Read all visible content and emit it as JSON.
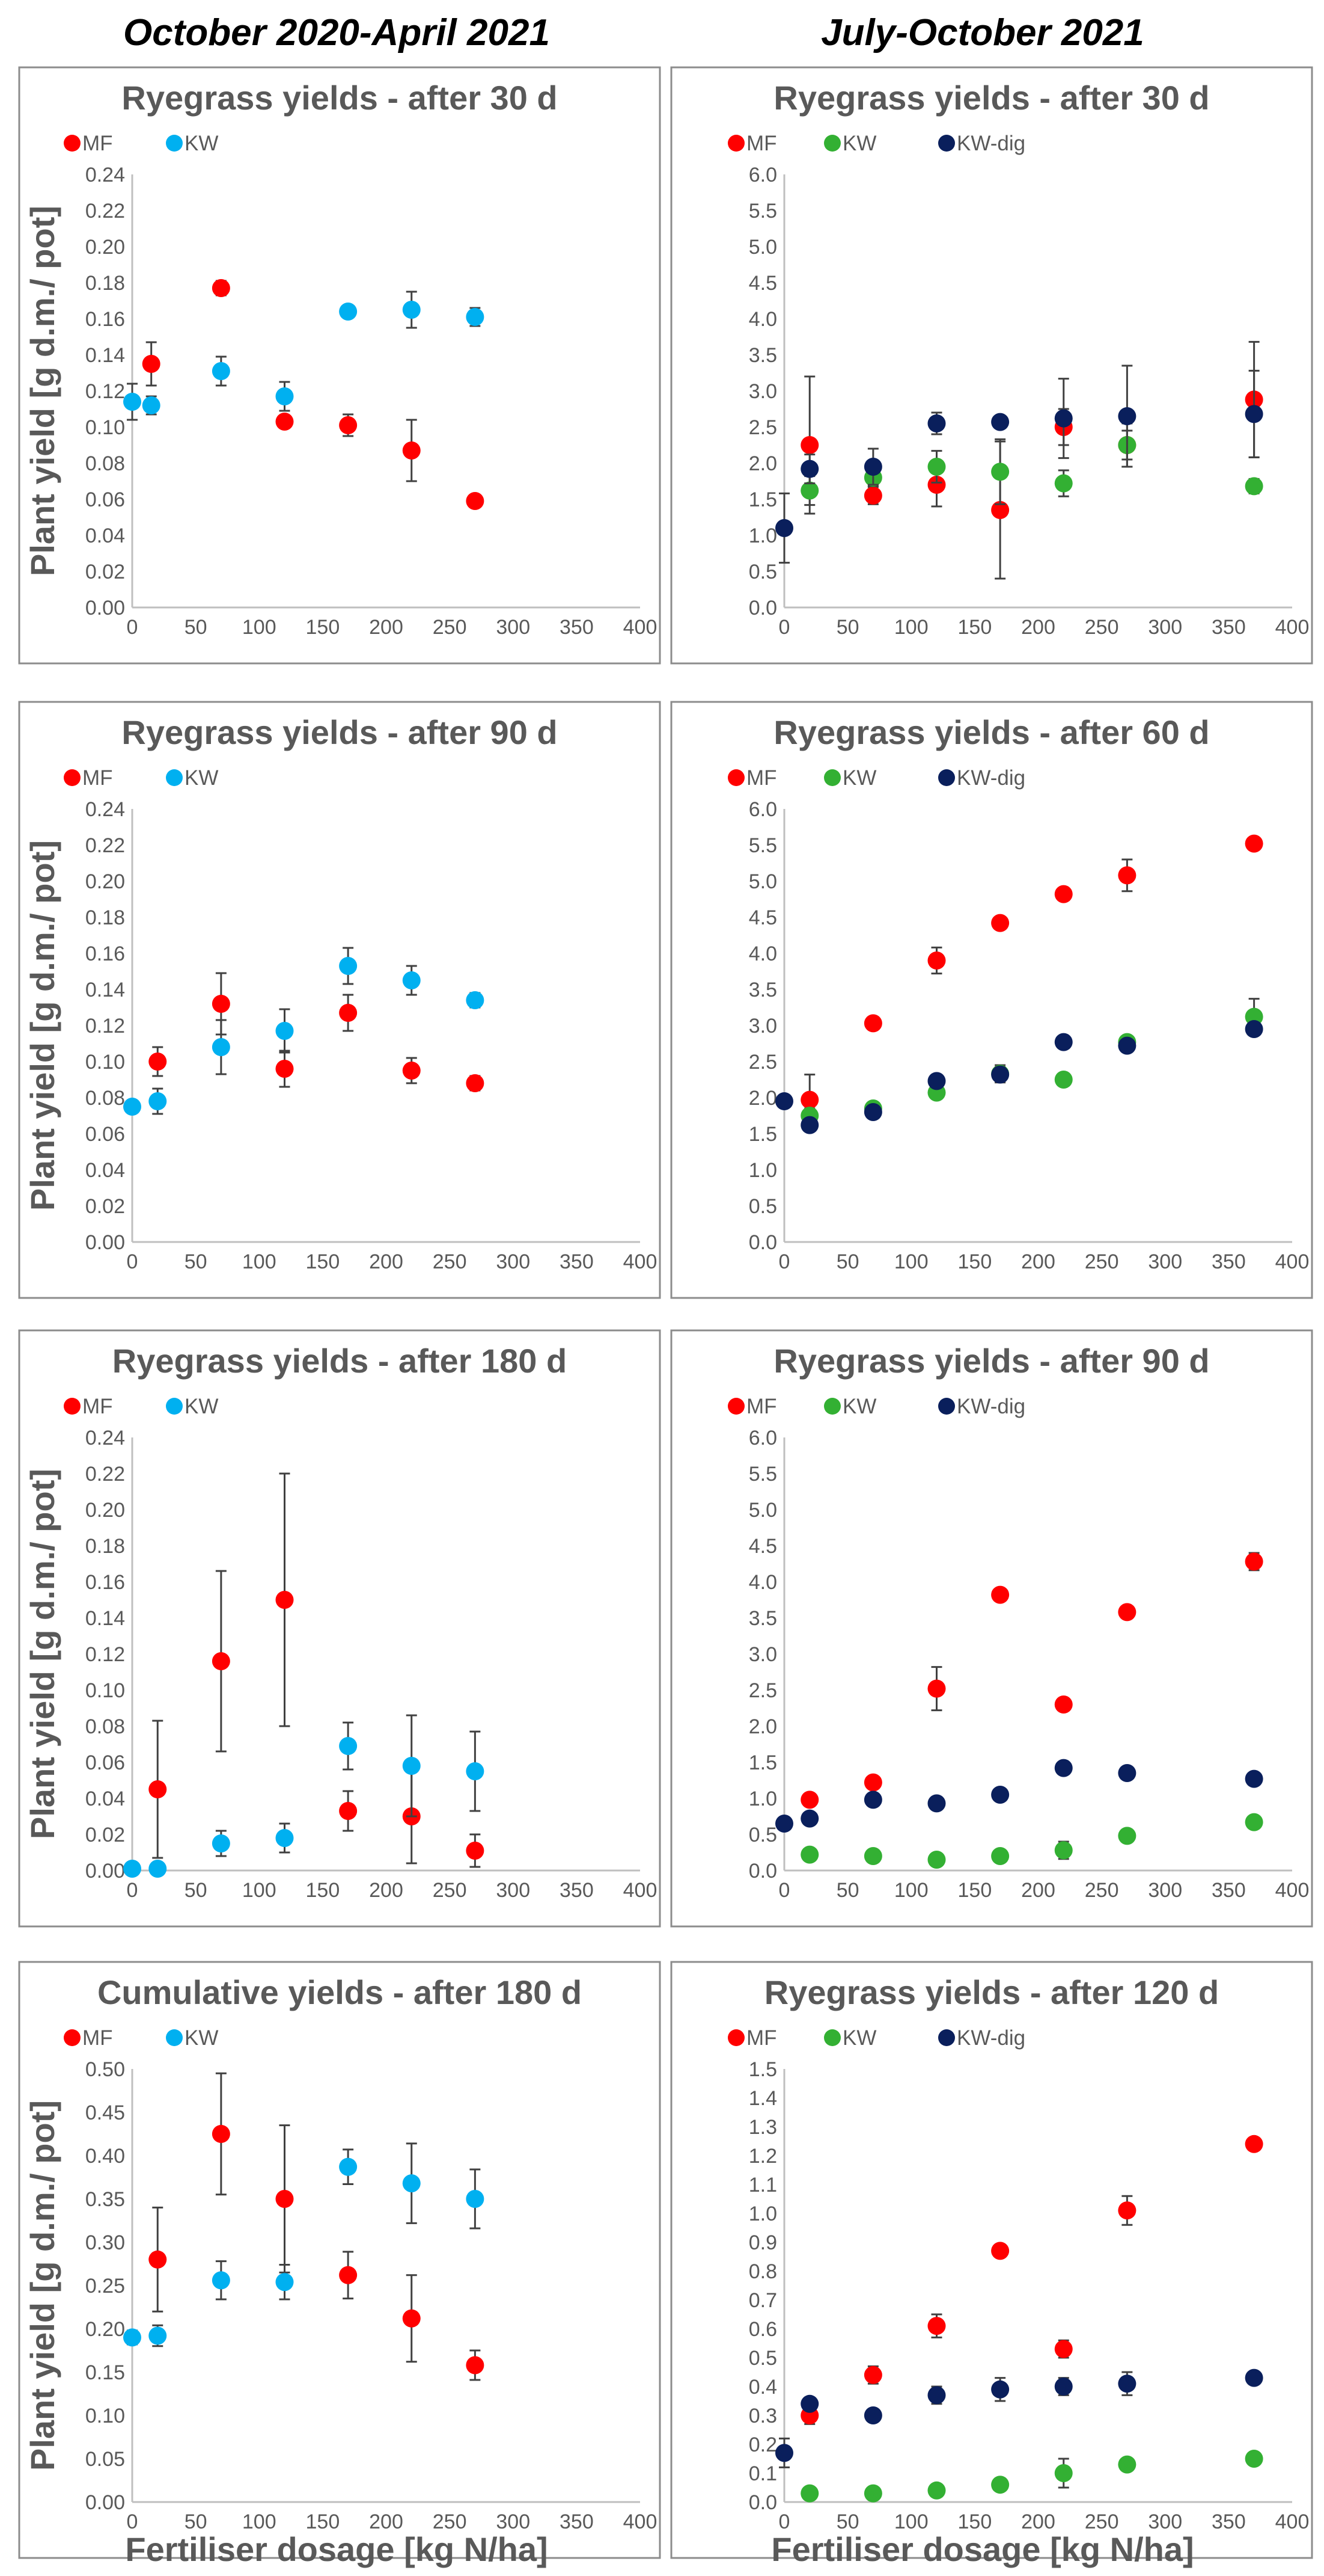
{
  "column_titles": [
    "October 2020-April 2021",
    "July-October 2021"
  ],
  "xlabel": "Fertiliser dosage [kg N/ha]",
  "ylabel": "Plant yield [g d.m./ pot]",
  "colors": {
    "MF": "#ff0000",
    "KW_left": "#00b0f0",
    "KW_right": "#33b033",
    "KW-dig": "#0a1f5c"
  },
  "chart_data": [
    {
      "type": "scatter",
      "title": "Ryegrass yields - after 30 d",
      "xlim": [
        0,
        400
      ],
      "ylim": [
        0,
        0.24
      ],
      "xstep": 50,
      "ystep": 0.02,
      "ydecimals": 2,
      "series": [
        {
          "name": "MF",
          "x": [
            15,
            70,
            120,
            170,
            220,
            270
          ],
          "y": [
            0.135,
            0.177,
            0.103,
            0.101,
            0.087,
            0.059
          ],
          "err": [
            0.012,
            0.004,
            0.003,
            0.006,
            0.017,
            0.003
          ]
        },
        {
          "name": "KW",
          "x": [
            0,
            15,
            70,
            120,
            170,
            220,
            270
          ],
          "y": [
            0.114,
            0.112,
            0.131,
            0.117,
            0.164,
            0.165,
            0.161
          ],
          "err": [
            0.01,
            0.005,
            0.008,
            0.008,
            0.003,
            0.01,
            0.005
          ]
        }
      ]
    },
    {
      "type": "scatter",
      "title": "Ryegrass yields - after 30 d",
      "xlim": [
        0,
        400
      ],
      "ylim": [
        0,
        6.0
      ],
      "xstep": 50,
      "ystep": 0.5,
      "ydecimals": 1,
      "series": [
        {
          "name": "MF",
          "x": [
            20,
            70,
            120,
            170,
            220,
            270,
            370
          ],
          "y": [
            2.25,
            1.55,
            1.7,
            1.35,
            2.5,
            2.25,
            2.88
          ],
          "err": [
            0.95,
            0.12,
            0.3,
            0.95,
            0.25,
            0.3,
            0.8
          ]
        },
        {
          "name": "KW",
          "x": [
            20,
            70,
            120,
            170,
            220,
            270,
            370
          ],
          "y": [
            1.62,
            1.8,
            1.95,
            1.88,
            1.72,
            2.25,
            1.68
          ],
          "err": [
            0.2,
            0.12,
            0.22,
            0.45,
            0.18,
            0.2,
            0.1
          ]
        },
        {
          "name": "KW-dig",
          "x": [
            0,
            20,
            70,
            120,
            170,
            220,
            270,
            370
          ],
          "y": [
            1.1,
            1.92,
            1.95,
            2.55,
            2.57,
            2.62,
            2.65,
            2.68
          ],
          "err": [
            0.48,
            0.2,
            0.25,
            0.15,
            0.05,
            0.55,
            0.7,
            0.6
          ]
        }
      ]
    },
    {
      "type": "scatter",
      "title": "Ryegrass yields - after 90 d",
      "xlim": [
        0,
        400
      ],
      "ylim": [
        0,
        0.24
      ],
      "xstep": 50,
      "ystep": 0.02,
      "ydecimals": 2,
      "series": [
        {
          "name": "MF",
          "x": [
            20,
            70,
            120,
            170,
            220,
            270
          ],
          "y": [
            0.1,
            0.132,
            0.096,
            0.127,
            0.095,
            0.088
          ],
          "err": [
            0.008,
            0.017,
            0.01,
            0.01,
            0.007,
            0.004
          ]
        },
        {
          "name": "KW",
          "x": [
            0,
            20,
            70,
            120,
            170,
            220,
            270
          ],
          "y": [
            0.075,
            0.078,
            0.108,
            0.117,
            0.153,
            0.145,
            0.134
          ],
          "err": [
            0.003,
            0.007,
            0.015,
            0.012,
            0.01,
            0.008,
            0.004
          ]
        }
      ]
    },
    {
      "type": "scatter",
      "title": "Ryegrass yields - after 60 d",
      "xlim": [
        0,
        400
      ],
      "ylim": [
        0,
        6.0
      ],
      "xstep": 50,
      "ystep": 0.5,
      "ydecimals": 1,
      "series": [
        {
          "name": "MF",
          "x": [
            20,
            70,
            120,
            170,
            220,
            270,
            370
          ],
          "y": [
            1.97,
            3.03,
            3.9,
            4.42,
            4.82,
            5.08,
            5.52
          ],
          "err": [
            0.35,
            0.05,
            0.18,
            0.05,
            0.08,
            0.22,
            0.05
          ]
        },
        {
          "name": "KW",
          "x": [
            20,
            70,
            120,
            170,
            220,
            270,
            370
          ],
          "y": [
            1.75,
            1.85,
            2.07,
            2.33,
            2.25,
            2.77,
            3.12
          ],
          "err": [
            0.1,
            0.05,
            0.08,
            0.12,
            0.05,
            0.08,
            0.25
          ]
        },
        {
          "name": "KW-dig",
          "x": [
            0,
            20,
            70,
            120,
            170,
            220,
            270,
            370
          ],
          "y": [
            1.95,
            1.62,
            1.8,
            2.23,
            2.32,
            2.77,
            2.72,
            2.95
          ],
          "err": [
            0.05,
            0.08,
            0.08,
            0.08,
            0.1,
            0.05,
            0.08,
            0.05
          ]
        }
      ]
    },
    {
      "type": "scatter",
      "title": "Ryegrass yields - after 180 d",
      "xlim": [
        0,
        400
      ],
      "ylim": [
        0,
        0.24
      ],
      "xstep": 50,
      "ystep": 0.02,
      "ydecimals": 2,
      "series": [
        {
          "name": "MF",
          "x": [
            20,
            70,
            120,
            170,
            220,
            270
          ],
          "y": [
            0.045,
            0.116,
            0.15,
            0.033,
            0.03,
            0.011
          ],
          "err": [
            0.038,
            0.05,
            0.07,
            0.011,
            0.026,
            0.009
          ]
        },
        {
          "name": "KW",
          "x": [
            0,
            20,
            70,
            120,
            170,
            220,
            270
          ],
          "y": [
            0.001,
            0.001,
            0.015,
            0.018,
            0.069,
            0.058,
            0.055
          ],
          "err": [
            0.002,
            0.002,
            0.007,
            0.008,
            0.013,
            0.028,
            0.022
          ]
        }
      ]
    },
    {
      "type": "scatter",
      "title": "Ryegrass yields - after 90 d",
      "xlim": [
        0,
        400
      ],
      "ylim": [
        0,
        6.0
      ],
      "xstep": 50,
      "ystep": 0.5,
      "ydecimals": 1,
      "series": [
        {
          "name": "MF",
          "x": [
            20,
            70,
            120,
            170,
            220,
            270,
            370
          ],
          "y": [
            0.98,
            1.22,
            2.52,
            3.82,
            2.3,
            3.58,
            4.28
          ],
          "err": [
            0.05,
            0.05,
            0.3,
            0.05,
            0.08,
            0.05,
            0.12
          ]
        },
        {
          "name": "KW",
          "x": [
            20,
            70,
            120,
            170,
            220,
            270,
            370
          ],
          "y": [
            0.22,
            0.2,
            0.15,
            0.2,
            0.28,
            0.48,
            0.67
          ],
          "err": [
            0.03,
            0.03,
            0.03,
            0.03,
            0.12,
            0.05,
            0.05
          ]
        },
        {
          "name": "KW-dig",
          "x": [
            0,
            20,
            70,
            120,
            170,
            220,
            270,
            370
          ],
          "y": [
            0.65,
            0.72,
            0.98,
            0.93,
            1.05,
            1.42,
            1.35,
            1.27
          ],
          "err": [
            0.05,
            0.05,
            0.05,
            0.08,
            0.05,
            0.05,
            0.05,
            0.05
          ]
        }
      ]
    },
    {
      "type": "scatter",
      "title": "Cumulative yields - after 180 d",
      "xlim": [
        0,
        400
      ],
      "ylim": [
        0,
        0.5
      ],
      "xstep": 50,
      "ystep": 0.05,
      "ydecimals": 2,
      "series": [
        {
          "name": "MF",
          "x": [
            20,
            70,
            120,
            170,
            220,
            270
          ],
          "y": [
            0.28,
            0.425,
            0.35,
            0.262,
            0.212,
            0.158
          ],
          "err": [
            0.06,
            0.07,
            0.085,
            0.027,
            0.05,
            0.017
          ]
        },
        {
          "name": "KW",
          "x": [
            0,
            20,
            70,
            120,
            170,
            220,
            270
          ],
          "y": [
            0.19,
            0.192,
            0.256,
            0.254,
            0.387,
            0.368,
            0.35
          ],
          "err": [
            0.008,
            0.012,
            0.022,
            0.02,
            0.02,
            0.046,
            0.034
          ]
        }
      ]
    },
    {
      "type": "scatter",
      "title": "Ryegrass yields - after 120 d",
      "xlim": [
        0,
        400
      ],
      "ylim": [
        0,
        1.5
      ],
      "xstep": 50,
      "ystep": 0.1,
      "ydecimals": 1,
      "series": [
        {
          "name": "MF",
          "x": [
            20,
            70,
            120,
            170,
            220,
            270,
            370
          ],
          "y": [
            0.3,
            0.44,
            0.61,
            0.87,
            0.53,
            1.01,
            1.24
          ],
          "err": [
            0.03,
            0.03,
            0.04,
            0.02,
            0.03,
            0.05,
            0.02
          ]
        },
        {
          "name": "KW",
          "x": [
            20,
            70,
            120,
            170,
            220,
            270,
            370
          ],
          "y": [
            0.03,
            0.03,
            0.04,
            0.06,
            0.1,
            0.13,
            0.15
          ],
          "err": [
            0.01,
            0.01,
            0.01,
            0.02,
            0.05,
            0.02,
            0.01
          ]
        },
        {
          "name": "KW-dig",
          "x": [
            0,
            20,
            70,
            120,
            170,
            220,
            270,
            370
          ],
          "y": [
            0.17,
            0.34,
            0.3,
            0.37,
            0.39,
            0.4,
            0.41,
            0.43
          ],
          "err": [
            0.05,
            0.02,
            0.02,
            0.03,
            0.04,
            0.03,
            0.04,
            0.02
          ]
        }
      ]
    }
  ]
}
